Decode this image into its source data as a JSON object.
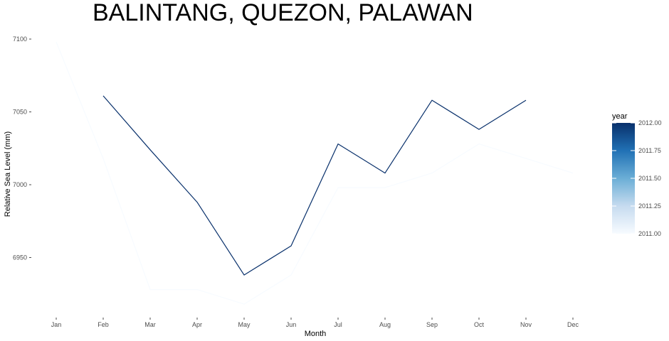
{
  "chart_data": {
    "type": "line",
    "title": "BALINTANG, QUEZON, PALAWAN",
    "xlabel": "Month",
    "ylabel": "Relative Sea Level (mm)",
    "categories": [
      "Jan",
      "Feb",
      "Mar",
      "Apr",
      "May",
      "Jun",
      "Jul",
      "Aug",
      "Sep",
      "Oct",
      "Nov",
      "Dec"
    ],
    "y_ticks": [
      6950,
      7000,
      7050,
      7100
    ],
    "ylim": [
      6910,
      7105
    ],
    "grid": false,
    "series": [
      {
        "name": "2011",
        "color": "#f7fbff",
        "values": [
          7098,
          7018,
          6928,
          6928,
          6918,
          6938,
          6998,
          6998,
          7008,
          7028,
          7018,
          7008
        ]
      },
      {
        "name": "2012",
        "color": "#08306b",
        "values": [
          null,
          7061,
          7024,
          6988,
          6938,
          6958,
          7028,
          7008,
          7058,
          7038,
          7058,
          null
        ]
      }
    ],
    "legend": {
      "title": "year",
      "position": "right",
      "colorscale": [
        "#f7fbff",
        "#c6dbef",
        "#6baed6",
        "#2171b5",
        "#08306b"
      ],
      "ticks": [
        "2011.00",
        "2011.25",
        "2011.50",
        "2011.75",
        "2012.00"
      ]
    }
  }
}
